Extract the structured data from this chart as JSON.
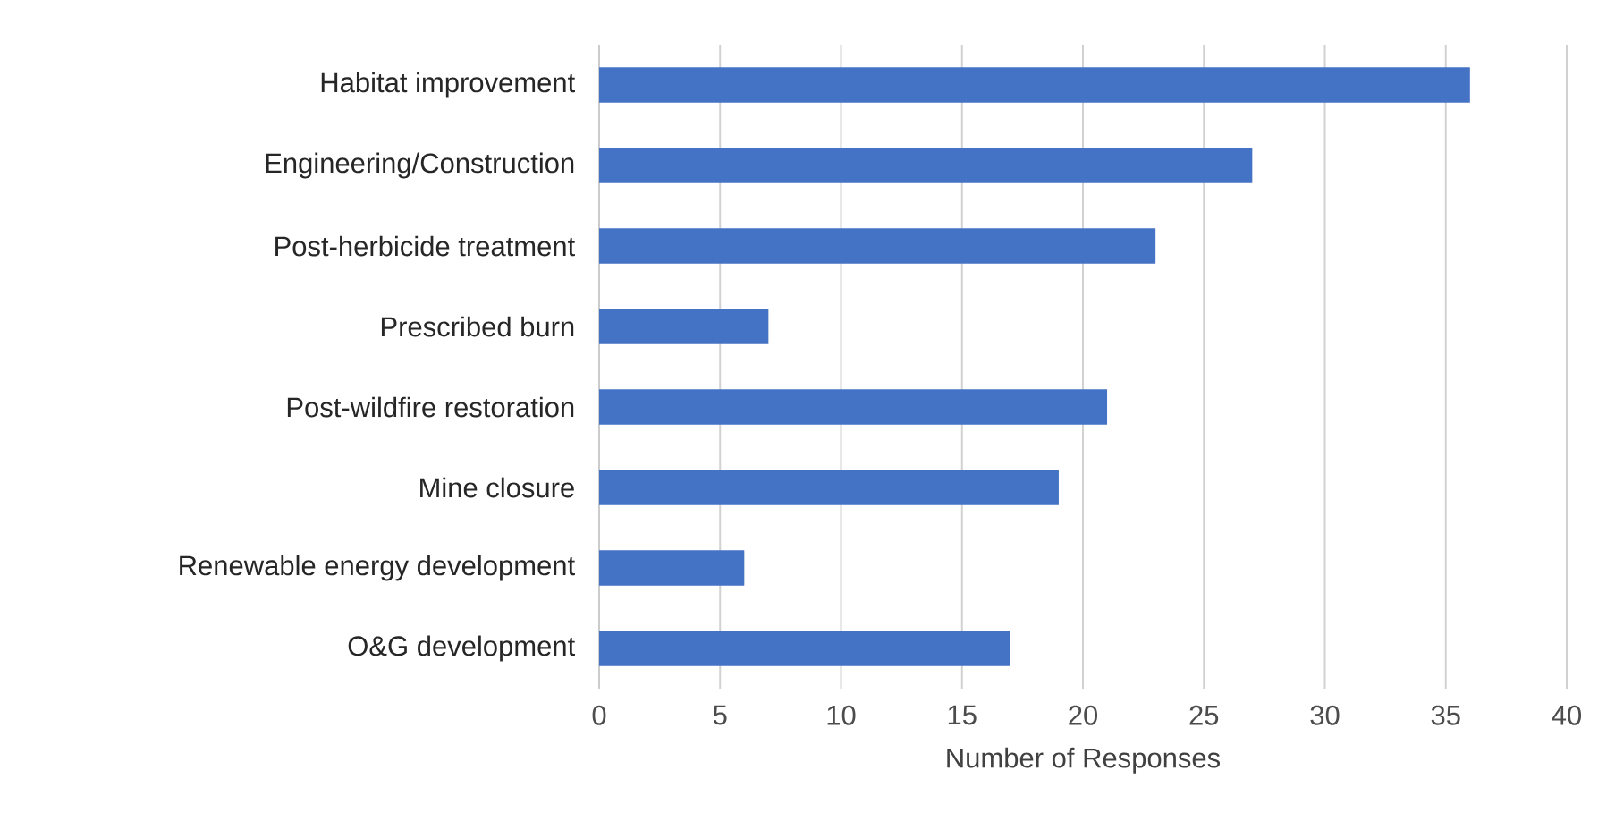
{
  "chart_data": {
    "type": "bar",
    "orientation": "horizontal",
    "categories": [
      "Habitat improvement",
      "Engineering/Construction",
      "Post-herbicide treatment",
      "Prescribed burn",
      "Post-wildfire restoration",
      "Mine closure",
      "Renewable energy development",
      "O&G development"
    ],
    "values": [
      36,
      27,
      23,
      7,
      21,
      19,
      6,
      17
    ],
    "color": "#4472c4",
    "xlabel": "Number of Responses",
    "xlim": [
      0,
      40
    ],
    "xticks": [
      0,
      5,
      10,
      15,
      20,
      25,
      30,
      35,
      40
    ],
    "grid": "x"
  }
}
